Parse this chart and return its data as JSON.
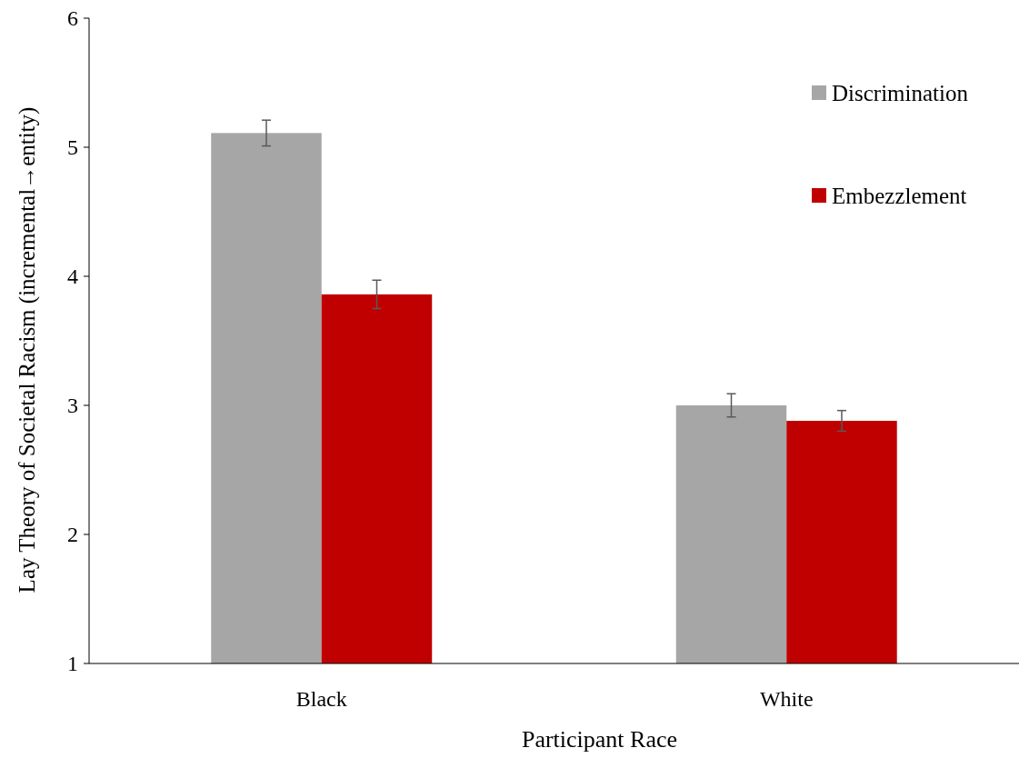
{
  "chart_data": {
    "type": "bar",
    "xlabel": "Participant Race",
    "ylabel": "Lay Theory of Societal Racism (incremental→entity)",
    "categories": [
      "Black",
      "White"
    ],
    "series": [
      {
        "name": "Discrimination",
        "color": "#a6a6a6",
        "values": [
          5.11,
          3.0
        ],
        "errors": [
          0.1,
          0.09
        ]
      },
      {
        "name": "Embezzlement",
        "color": "#c00000",
        "values": [
          3.86,
          2.88
        ],
        "errors": [
          0.11,
          0.08
        ]
      }
    ],
    "ylim": [
      1,
      6
    ],
    "yticks": [
      1,
      2,
      3,
      4,
      5,
      6
    ],
    "grid": false,
    "legend": "top right"
  }
}
